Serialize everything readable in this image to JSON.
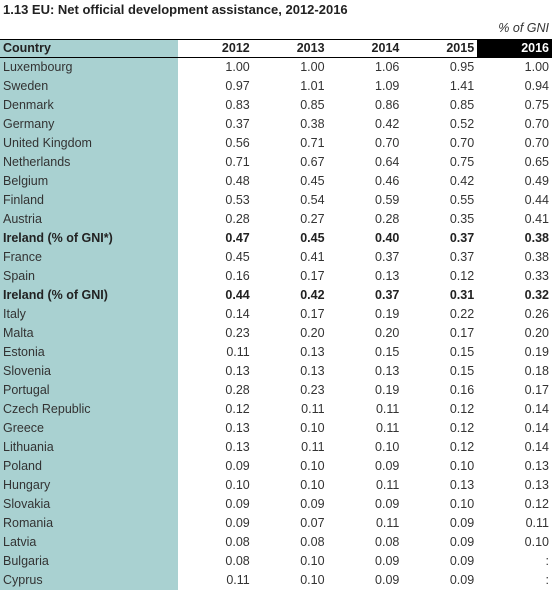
{
  "title": "1.13  EU: Net official development assistance, 2012-2016",
  "unit": "% of GNI",
  "highlight_color": "#000000",
  "country_col_color": "#a9d1d1",
  "header": {
    "country": "Country",
    "years": [
      "2012",
      "2013",
      "2014",
      "2015",
      "2016"
    ]
  },
  "rows": [
    {
      "country": "Luxembourg",
      "values": [
        "1.00",
        "1.00",
        "1.06",
        "0.95",
        "1.00"
      ],
      "bold": false
    },
    {
      "country": "Sweden",
      "values": [
        "0.97",
        "1.01",
        "1.09",
        "1.41",
        "0.94"
      ],
      "bold": false
    },
    {
      "country": "Denmark",
      "values": [
        "0.83",
        "0.85",
        "0.86",
        "0.85",
        "0.75"
      ],
      "bold": false
    },
    {
      "country": "Germany",
      "values": [
        "0.37",
        "0.38",
        "0.42",
        "0.52",
        "0.70"
      ],
      "bold": false
    },
    {
      "country": "United Kingdom",
      "values": [
        "0.56",
        "0.71",
        "0.70",
        "0.70",
        "0.70"
      ],
      "bold": false
    },
    {
      "country": "Netherlands",
      "values": [
        "0.71",
        "0.67",
        "0.64",
        "0.75",
        "0.65"
      ],
      "bold": false
    },
    {
      "country": "Belgium",
      "values": [
        "0.48",
        "0.45",
        "0.46",
        "0.42",
        "0.49"
      ],
      "bold": false
    },
    {
      "country": "Finland",
      "values": [
        "0.53",
        "0.54",
        "0.59",
        "0.55",
        "0.44"
      ],
      "bold": false
    },
    {
      "country": "Austria",
      "values": [
        "0.28",
        "0.27",
        "0.28",
        "0.35",
        "0.41"
      ],
      "bold": false
    },
    {
      "country": "Ireland (% of GNI*)",
      "values": [
        "0.47",
        "0.45",
        "0.40",
        "0.37",
        "0.38"
      ],
      "bold": true
    },
    {
      "country": "France",
      "values": [
        "0.45",
        "0.41",
        "0.37",
        "0.37",
        "0.38"
      ],
      "bold": false
    },
    {
      "country": "Spain",
      "values": [
        "0.16",
        "0.17",
        "0.13",
        "0.12",
        "0.33"
      ],
      "bold": false
    },
    {
      "country": "Ireland (% of GNI)",
      "values": [
        "0.44",
        "0.42",
        "0.37",
        "0.31",
        "0.32"
      ],
      "bold": true
    },
    {
      "country": "Italy",
      "values": [
        "0.14",
        "0.17",
        "0.19",
        "0.22",
        "0.26"
      ],
      "bold": false
    },
    {
      "country": "Malta",
      "values": [
        "0.23",
        "0.20",
        "0.20",
        "0.17",
        "0.20"
      ],
      "bold": false
    },
    {
      "country": "Estonia",
      "values": [
        "0.11",
        "0.13",
        "0.15",
        "0.15",
        "0.19"
      ],
      "bold": false
    },
    {
      "country": "Slovenia",
      "values": [
        "0.13",
        "0.13",
        "0.13",
        "0.15",
        "0.18"
      ],
      "bold": false
    },
    {
      "country": "Portugal",
      "values": [
        "0.28",
        "0.23",
        "0.19",
        "0.16",
        "0.17"
      ],
      "bold": false
    },
    {
      "country": "Czech Republic",
      "values": [
        "0.12",
        "0.11",
        "0.11",
        "0.12",
        "0.14"
      ],
      "bold": false
    },
    {
      "country": "Greece",
      "values": [
        "0.13",
        "0.10",
        "0.11",
        "0.12",
        "0.14"
      ],
      "bold": false
    },
    {
      "country": "Lithuania",
      "values": [
        "0.13",
        "0.11",
        "0.10",
        "0.12",
        "0.14"
      ],
      "bold": false
    },
    {
      "country": "Poland",
      "values": [
        "0.09",
        "0.10",
        "0.09",
        "0.10",
        "0.13"
      ],
      "bold": false
    },
    {
      "country": "Hungary",
      "values": [
        "0.10",
        "0.10",
        "0.11",
        "0.13",
        "0.13"
      ],
      "bold": false
    },
    {
      "country": "Slovakia",
      "values": [
        "0.09",
        "0.09",
        "0.09",
        "0.10",
        "0.12"
      ],
      "bold": false
    },
    {
      "country": "Romania",
      "values": [
        "0.09",
        "0.07",
        "0.11",
        "0.09",
        "0.11"
      ],
      "bold": false
    },
    {
      "country": "Latvia",
      "values": [
        "0.08",
        "0.08",
        "0.08",
        "0.09",
        "0.10"
      ],
      "bold": false
    },
    {
      "country": "Bulgaria",
      "values": [
        "0.08",
        "0.10",
        "0.09",
        "0.09",
        ":"
      ],
      "bold": false
    },
    {
      "country": "Cyprus",
      "values": [
        "0.11",
        "0.10",
        "0.09",
        "0.09",
        ":"
      ],
      "bold": false
    }
  ]
}
